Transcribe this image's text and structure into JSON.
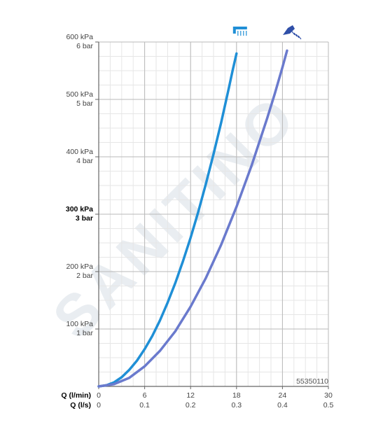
{
  "chart_data": {
    "type": "line",
    "title": "",
    "product_code": "55350110",
    "watermark": "SANITINO",
    "x_axis": {
      "range": [
        0,
        30
      ],
      "primary_label": "Q (l/min)",
      "primary_ticks": [
        "0",
        "6",
        "12",
        "18",
        "24",
        "30"
      ],
      "secondary_label": "Q (l/s)",
      "secondary_ticks": [
        "0",
        "0.1",
        "0.2",
        "0.3",
        "0.4",
        "0.5"
      ]
    },
    "y_axis": {
      "unit": "bar",
      "range": [
        0,
        6
      ],
      "ticks": [
        {
          "value": 1,
          "kpa": "100 kPa",
          "bar": "1 bar",
          "bold": false
        },
        {
          "value": 2,
          "kpa": "200 kPa",
          "bar": "2 bar",
          "bold": false
        },
        {
          "value": 3,
          "kpa": "300 kPa",
          "bar": "3 bar",
          "bold": true
        },
        {
          "value": 4,
          "kpa": "400 kPa",
          "bar": "4 bar",
          "bold": false
        },
        {
          "value": 5,
          "kpa": "500 kPa",
          "bar": "5 bar",
          "bold": false
        },
        {
          "value": 6,
          "kpa": "600 kPa",
          "bar": "6 bar",
          "bold": false
        }
      ]
    },
    "grid": true,
    "series": [
      {
        "icon": "hand-shower-icon",
        "color": "#1f8fd6",
        "points": [
          [
            0,
            0
          ],
          [
            1,
            0.02
          ],
          [
            2,
            0.07
          ],
          [
            3,
            0.16
          ],
          [
            4,
            0.29
          ],
          [
            5,
            0.45
          ],
          [
            6,
            0.65
          ],
          [
            7,
            0.88
          ],
          [
            8,
            1.15
          ],
          [
            9,
            1.46
          ],
          [
            10,
            1.8
          ],
          [
            11,
            2.18
          ],
          [
            12,
            2.59
          ],
          [
            13,
            3.04
          ],
          [
            14,
            3.53
          ],
          [
            15,
            4.05
          ],
          [
            16,
            4.6
          ],
          [
            17,
            5.2
          ],
          [
            17.5,
            5.51
          ],
          [
            18.0,
            5.8
          ]
        ]
      },
      {
        "icon": "overhead-shower-icon",
        "color": "#6a7acd",
        "points": [
          [
            0,
            0
          ],
          [
            2,
            0.04
          ],
          [
            4,
            0.15
          ],
          [
            6,
            0.35
          ],
          [
            8,
            0.62
          ],
          [
            10,
            0.96
          ],
          [
            12,
            1.39
          ],
          [
            14,
            1.89
          ],
          [
            16,
            2.47
          ],
          [
            18,
            3.13
          ],
          [
            20,
            3.86
          ],
          [
            22,
            4.67
          ],
          [
            23,
            5.1
          ],
          [
            24,
            5.56
          ],
          [
            24.6,
            5.85
          ]
        ]
      }
    ]
  }
}
